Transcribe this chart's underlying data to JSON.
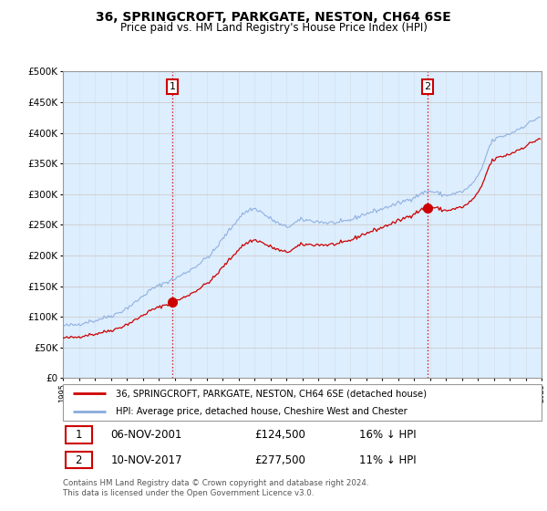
{
  "title": "36, SPRINGCROFT, PARKGATE, NESTON, CH64 6SE",
  "subtitle": "Price paid vs. HM Land Registry's House Price Index (HPI)",
  "ylim": [
    0,
    500000
  ],
  "yticks": [
    0,
    50000,
    100000,
    150000,
    200000,
    250000,
    300000,
    350000,
    400000,
    450000,
    500000
  ],
  "sale1_date": "06-NOV-2001",
  "sale1_price": 124500,
  "sale1_year": 2001.85,
  "sale1_pct": "16%",
  "sale2_date": "10-NOV-2017",
  "sale2_price": 277500,
  "sale2_year": 2017.85,
  "sale2_pct": "11%",
  "legend_red": "36, SPRINGCROFT, PARKGATE, NESTON, CH64 6SE (detached house)",
  "legend_blue": "HPI: Average price, detached house, Cheshire West and Chester",
  "footnote": "Contains HM Land Registry data © Crown copyright and database right 2024.\nThis data is licensed under the Open Government Licence v3.0.",
  "grid_color": "#cccccc",
  "red_color": "#cc0000",
  "blue_color": "#88aadd",
  "plot_bg_color": "#ddeeff",
  "vline_color": "#cc0000",
  "table_border_color": "#cc0000",
  "xmin": 1995,
  "xmax": 2025
}
